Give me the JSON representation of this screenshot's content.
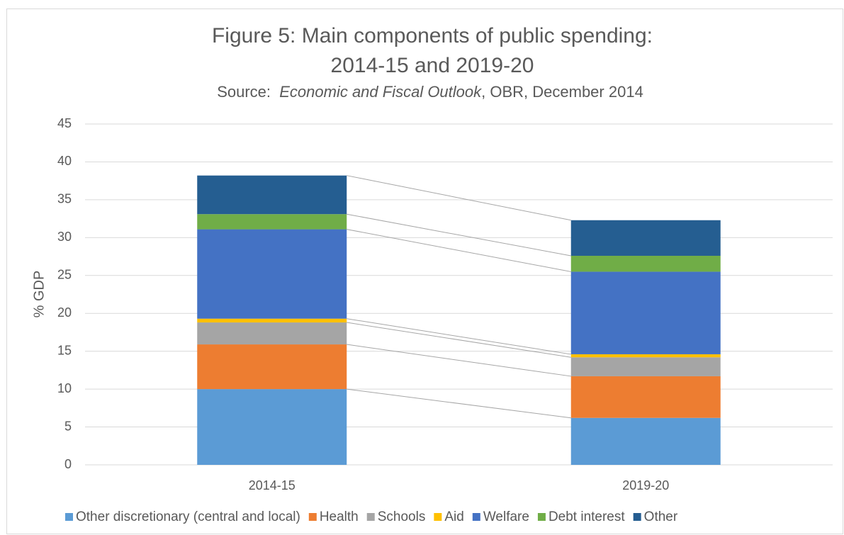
{
  "chart_data": {
    "type": "stacked-bar",
    "title": [
      "Figure 5: Main components of public spending:",
      "2014-15 and 2019-20"
    ],
    "subtitle": [
      "Source:  ",
      "Economic and Fiscal Outlook",
      ", OBR, December 2014"
    ],
    "y_label": "% GDP",
    "categories": [
      "2014-15",
      "2019-20"
    ],
    "series": [
      {
        "name": "Other discretionary (central and local)",
        "color": "#5b9bd5",
        "values": [
          10.0,
          6.2
        ]
      },
      {
        "name": "Health",
        "color": "#ed7d31",
        "values": [
          5.9,
          5.5
        ]
      },
      {
        "name": "Schools",
        "color": "#a5a5a5",
        "values": [
          2.9,
          2.5
        ]
      },
      {
        "name": "Aid",
        "color": "#ffc000",
        "values": [
          0.5,
          0.4
        ]
      },
      {
        "name": "Welfare",
        "color": "#4472c4",
        "values": [
          11.8,
          10.9
        ]
      },
      {
        "name": "Debt interest",
        "color": "#70ad47",
        "values": [
          2.0,
          2.1
        ]
      },
      {
        "name": "Other",
        "color": "#255e91",
        "values": [
          5.1,
          4.7
        ]
      }
    ],
    "ylim": [
      0,
      45
    ],
    "yticks": [
      0,
      5,
      10,
      15,
      20,
      25,
      30,
      35,
      40,
      45
    ],
    "grid": true,
    "legend": "bottom"
  }
}
